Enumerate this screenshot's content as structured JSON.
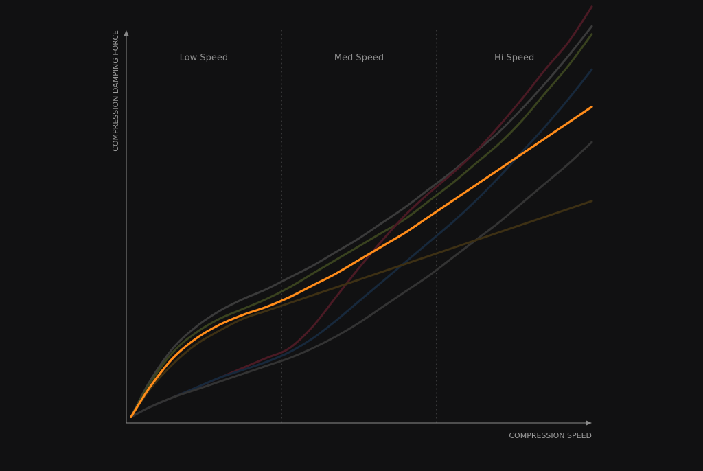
{
  "chart_data": {
    "type": "line",
    "title": "",
    "xlabel": "COMPRESSION SPEED",
    "ylabel": "COMPRESSION DAMPING FORCE",
    "xlim": [
      0,
      100
    ],
    "ylim": [
      0,
      100
    ],
    "grid": false,
    "zones": [
      {
        "label": "Low Speed",
        "from": 0,
        "to": 33.3
      },
      {
        "label": "Med Speed",
        "from": 33.3,
        "to": 66.7
      },
      {
        "label": "Hi Speed",
        "from": 66.7,
        "to": 100
      }
    ],
    "x": [
      1,
      5,
      10,
      15,
      20,
      25,
      30,
      35,
      40,
      45,
      50,
      55,
      60,
      65,
      70,
      75,
      80,
      85,
      90,
      95,
      100
    ],
    "series": [
      {
        "color": "#ff8c1a",
        "highlight": true,
        "values": [
          1.5,
          9,
          16.5,
          21.5,
          25,
          27.5,
          29.5,
          32,
          35,
          38,
          41.5,
          45,
          48.5,
          52.5,
          56.5,
          60.5,
          64.5,
          68.5,
          72.5,
          76.5,
          80.5
        ]
      },
      {
        "color": "#3a3a3a",
        "values": [
          1.5,
          10.5,
          19,
          24.5,
          28.5,
          31.5,
          34,
          37,
          40,
          43.5,
          47,
          51,
          55,
          59.5,
          64,
          69,
          74,
          80,
          86.5,
          93.5,
          101
        ]
      },
      {
        "color": "#39421f",
        "values": [
          1.5,
          10,
          18,
          23,
          26.5,
          29,
          31.5,
          34.5,
          38,
          41.5,
          45,
          48.5,
          52,
          56.5,
          61,
          66,
          71,
          77,
          84,
          91,
          99
        ]
      },
      {
        "color": "#4a1a24",
        "values": [
          1.5,
          4,
          6.5,
          9,
          11.5,
          14,
          16.5,
          19,
          24.5,
          32,
          39.5,
          46.5,
          53,
          58.5,
          63.5,
          69,
          75.5,
          82.5,
          90,
          97,
          106
        ]
      },
      {
        "color": "#17283b",
        "values": [
          1.5,
          4,
          6.5,
          9,
          11.5,
          13.5,
          15.5,
          18,
          21.5,
          26,
          31,
          36,
          41,
          46,
          51,
          56.5,
          62.5,
          69,
          75.5,
          82.5,
          90
        ]
      },
      {
        "color": "#333333",
        "values": [
          1.5,
          4,
          6.5,
          8.5,
          10.5,
          12.5,
          14.5,
          16.5,
          19,
          22,
          25.5,
          29.5,
          33.5,
          37.5,
          42,
          46.5,
          51,
          56,
          61,
          66,
          71.5
        ]
      },
      {
        "color": "#3d3014",
        "values": [
          1.5,
          8.5,
          15,
          20,
          23.5,
          26.5,
          28.5,
          30.5,
          32.5,
          34.5,
          36.5,
          38.5,
          40.5,
          42.5,
          44.5,
          46.5,
          48.5,
          50.5,
          52.5,
          54.5,
          56.5
        ]
      }
    ]
  }
}
